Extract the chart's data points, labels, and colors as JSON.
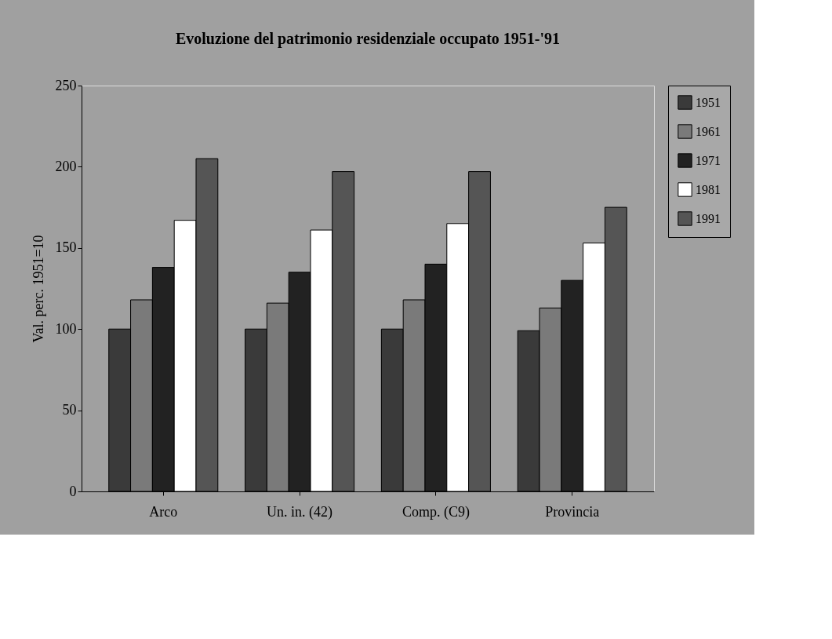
{
  "chart_data": {
    "type": "bar",
    "title": "Evoluzione del patrimonio residenziale occupato 1951-'91",
    "ylabel": "Val. perc. 1951=10",
    "categories": [
      "Arco",
      "Un. in. (42)",
      "Comp. (C9)",
      "Provincia"
    ],
    "series": [
      {
        "name": "1951",
        "color": "#3a3a3a",
        "values": [
          100,
          100,
          100,
          99
        ]
      },
      {
        "name": "1961",
        "color": "#7a7a7a",
        "values": [
          118,
          116,
          118,
          113
        ]
      },
      {
        "name": "1971",
        "color": "#222222",
        "values": [
          138,
          135,
          140,
          130
        ]
      },
      {
        "name": "1981",
        "color": "#ffffff",
        "values": [
          167,
          161,
          165,
          153
        ]
      },
      {
        "name": "1991",
        "color": "#555555",
        "values": [
          205,
          197,
          197,
          175
        ]
      }
    ],
    "ylim": [
      0,
      250
    ],
    "yticks": [
      0,
      50,
      100,
      150,
      200,
      250
    ],
    "grid": false,
    "legend": "right"
  }
}
